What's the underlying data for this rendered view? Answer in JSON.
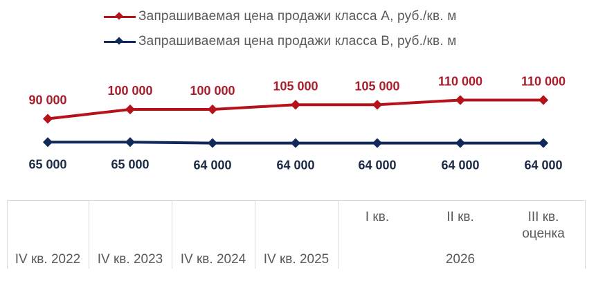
{
  "chart_data": {
    "type": "line",
    "categories": [
      "IV кв. 2022",
      "IV кв. 2023",
      "IV кв. 2024",
      "IV кв. 2025",
      "I кв. 2026",
      "II кв. 2026",
      "III кв. 2026 оценка"
    ],
    "series": [
      {
        "name": "Запрашиваемая цена продажи класса А, руб./кв. м",
        "color": "#b5121b",
        "values": [
          90000,
          100000,
          100000,
          105000,
          105000,
          110000,
          110000
        ],
        "value_labels": [
          "90 000",
          "100 000",
          "100 000",
          "105 000",
          "105 000",
          "110 000",
          "110 000"
        ]
      },
      {
        "name": "Запрашиваемая цена продажи класса В, руб./кв. м",
        "color": "#10285a",
        "values": [
          65000,
          65000,
          64000,
          64000,
          64000,
          64000,
          64000
        ],
        "value_labels": [
          "65 000",
          "65 000",
          "64 000",
          "64 000",
          "64 000",
          "64 000",
          "64 000"
        ]
      }
    ],
    "x_axis": {
      "period_labels": [
        "IV кв. 2022",
        "IV кв. 2023",
        "IV кв. 2024",
        "IV кв. 2025",
        "I кв.",
        "II кв.",
        "III кв. оценка"
      ],
      "group_label": "2026"
    },
    "legend_position": "top",
    "grid": false
  }
}
